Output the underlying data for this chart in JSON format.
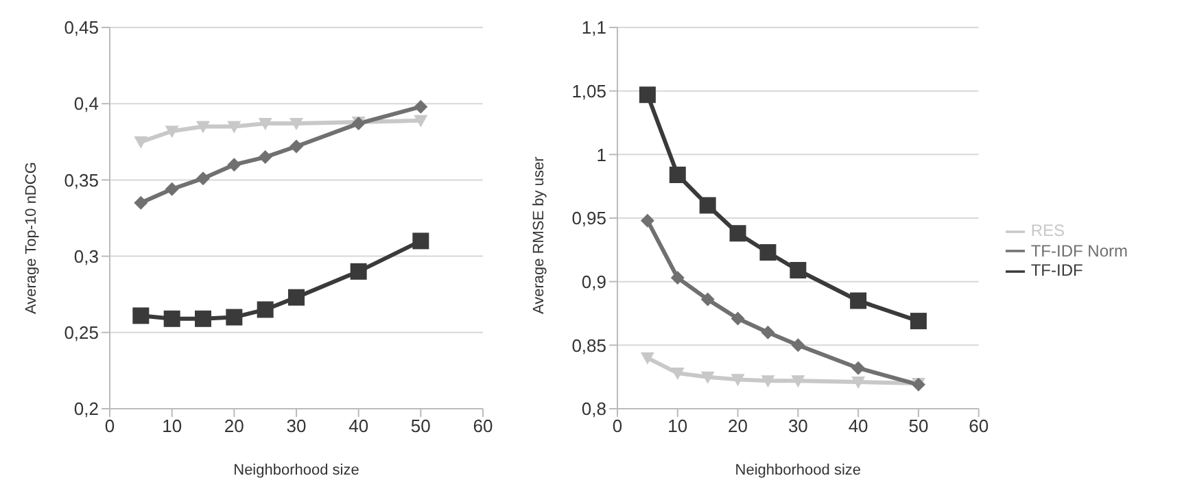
{
  "chart_data": [
    {
      "type": "line",
      "xlabel": "Neighborhood size",
      "ylabel": "Average Top-10 nDCG",
      "x": [
        5,
        10,
        15,
        20,
        25,
        30,
        40,
        50
      ],
      "xlim": [
        0,
        60
      ],
      "xticks": [
        0,
        10,
        20,
        30,
        40,
        50,
        60
      ],
      "ylim": [
        0.2,
        0.45
      ],
      "yticks": [
        {
          "value": 0.2,
          "label": "0,2"
        },
        {
          "value": 0.25,
          "label": "0,25"
        },
        {
          "value": 0.3,
          "label": "0,3"
        },
        {
          "value": 0.35,
          "label": "0,35"
        },
        {
          "value": 0.4,
          "label": "0,4"
        },
        {
          "value": 0.45,
          "label": "0,45"
        }
      ],
      "grid": "y",
      "legend": false,
      "series": [
        {
          "color": "#3a3a3a",
          "marker": "square",
          "values": [
            0.261,
            0.259,
            0.259,
            0.26,
            0.265,
            0.273,
            0.29,
            0.31
          ]
        },
        {
          "color": "#707070",
          "marker": "diamond",
          "values": [
            0.335,
            0.344,
            0.351,
            0.36,
            0.365,
            0.372,
            0.387,
            0.398
          ]
        },
        {
          "color": "#c8c8c8",
          "marker": "triangle",
          "values": [
            0.375,
            0.382,
            0.385,
            0.385,
            0.387,
            0.387,
            0.388,
            0.389
          ]
        }
      ]
    },
    {
      "type": "line",
      "xlabel": "Neighborhood size",
      "ylabel": "Average RMSE by user",
      "x": [
        5,
        10,
        15,
        20,
        25,
        30,
        40,
        50
      ],
      "xlim": [
        0,
        60
      ],
      "xticks": [
        0,
        10,
        20,
        30,
        40,
        50,
        60
      ],
      "ylim": [
        0.8,
        1.1
      ],
      "yticks": [
        {
          "value": 0.8,
          "label": "0,8"
        },
        {
          "value": 0.85,
          "label": "0,85"
        },
        {
          "value": 0.9,
          "label": "0,9"
        },
        {
          "value": 0.95,
          "label": "0,95"
        },
        {
          "value": 1,
          "label": "1"
        },
        {
          "value": 1.05,
          "label": "1,05"
        },
        {
          "value": 1.1,
          "label": "1,1"
        }
      ],
      "grid": "y",
      "legend": "right",
      "series": [
        {
          "name": "TF-IDF",
          "color": "#3a3a3a",
          "marker": "square",
          "values": [
            1.047,
            0.984,
            0.96,
            0.938,
            0.923,
            0.909,
            0.885,
            0.869
          ]
        },
        {
          "name": "TF-IDF Norm",
          "color": "#707070",
          "marker": "diamond",
          "values": [
            0.948,
            0.903,
            0.886,
            0.871,
            0.86,
            0.85,
            0.832,
            0.819
          ]
        },
        {
          "name": "RES",
          "color": "#c8c8c8",
          "marker": "triangle",
          "values": [
            0.84,
            0.828,
            0.825,
            0.823,
            0.822,
            0.822,
            0.821,
            0.82
          ]
        }
      ]
    }
  ]
}
